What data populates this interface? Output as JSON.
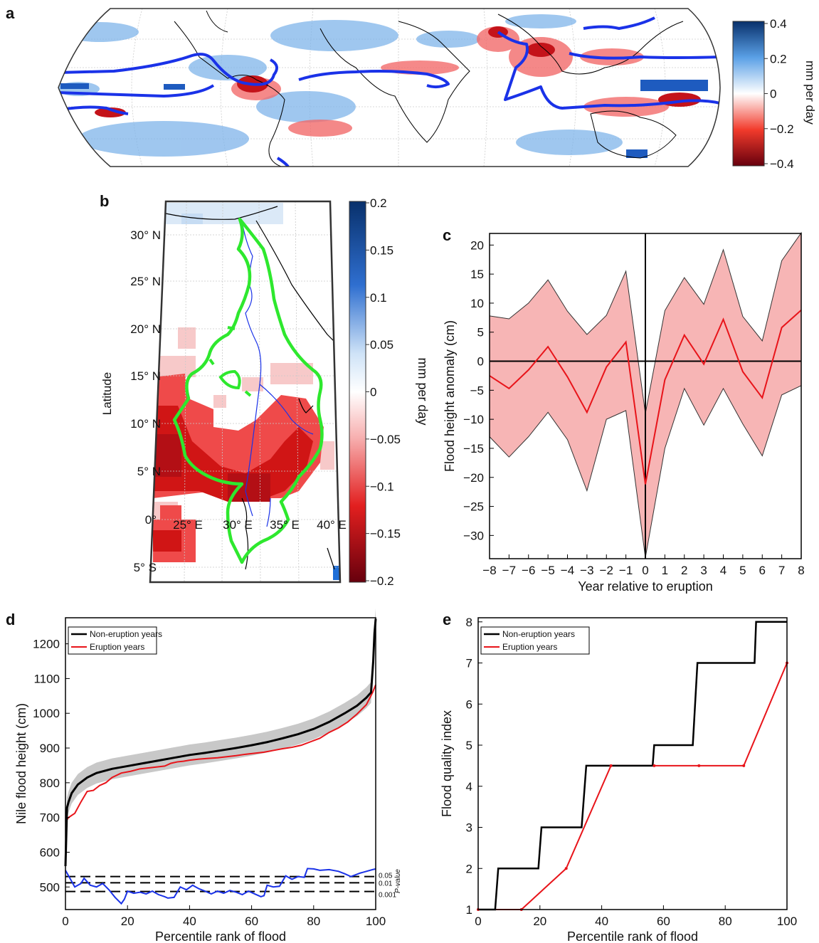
{
  "panels": {
    "a": {
      "letter": "a",
      "colorbar": {
        "ticks": [
          "0.4",
          "0.2",
          "0",
          "−0.2",
          "−0.4"
        ],
        "label": "mm per day",
        "colors": [
          "#08306b",
          "#4a90e2",
          "#ffffff",
          "#ef3b2c",
          "#67000d"
        ]
      }
    },
    "b": {
      "letter": "b",
      "ylabel": "Latitude",
      "lat_ticks": [
        "30° N",
        "25° N",
        "20° N",
        "15° N",
        "10° N",
        "5° N",
        "0°",
        "5° S"
      ],
      "lon_ticks": [
        "25° E",
        "30° E",
        "35° E",
        "40° E"
      ],
      "colorbar": {
        "ticks": [
          "0.2",
          "0.15",
          "0.1",
          "0.05",
          "0",
          "−0.05",
          "−0.1",
          "−0.15",
          "−0.2"
        ],
        "label": "mm per day"
      }
    }
  },
  "chart_data": [
    {
      "panel": "c",
      "type": "line",
      "xlabel": "Year relative to eruption",
      "ylabel": "Flood height anomaly (cm)",
      "x": [
        -8,
        -7,
        -6,
        -5,
        -4,
        -3,
        -2,
        -1,
        0,
        1,
        2,
        3,
        4,
        5,
        6,
        7,
        8
      ],
      "xticks": [
        "−8",
        "−7",
        "−6",
        "−5",
        "−4",
        "−3",
        "−2",
        "−1",
        "0",
        "1",
        "2",
        "3",
        "4",
        "5",
        "6",
        "7",
        "8"
      ],
      "yticks": [
        "20",
        "15",
        "10",
        "5",
        "0",
        "−5",
        "−10",
        "−15",
        "−20",
        "−25",
        "−30"
      ],
      "ytick_values": [
        20,
        15,
        10,
        5,
        0,
        -5,
        -10,
        -15,
        -20,
        -25,
        -30
      ],
      "xlim": [
        -8,
        8
      ],
      "ylim": [
        -34,
        22
      ],
      "series": [
        {
          "role": "mean",
          "values": [
            -2.5,
            -4.7,
            -1.5,
            2.5,
            -2.7,
            -8.8,
            -1.0,
            3.3,
            -21.2,
            -3.2,
            4.5,
            -0.5,
            7.2,
            -1.8,
            -6.3,
            5.8,
            8.8
          ],
          "color": "#e8141a"
        },
        {
          "role": "upper",
          "values": [
            7.8,
            7.3,
            10.0,
            14.0,
            8.6,
            4.6,
            7.9,
            15.5,
            -9.0,
            8.7,
            14.4,
            9.8,
            19.2,
            7.7,
            3.5,
            17.3,
            22.1
          ]
        },
        {
          "role": "lower",
          "values": [
            -13.0,
            -16.5,
            -13.0,
            -8.8,
            -13.5,
            -22.3,
            -10.0,
            -8.5,
            -33.8,
            -15.0,
            -4.7,
            -11.0,
            -4.7,
            -10.8,
            -16.3,
            -5.8,
            -4.2
          ]
        }
      ],
      "band_color": "#f7b5b5"
    },
    {
      "panel": "d",
      "type": "line",
      "xlabel": "Percentile rank of flood",
      "ylabel": "Nile flood height (cm)",
      "xticks": [
        "0",
        "20",
        "40",
        "60",
        "80",
        "100"
      ],
      "xtick_values": [
        0,
        20,
        40,
        60,
        80,
        100
      ],
      "yticks": [
        "1200",
        "1100",
        "1000",
        "900",
        "800",
        "700",
        "600",
        "500"
      ],
      "ytick_values": [
        1200,
        1100,
        1000,
        900,
        800,
        700,
        600,
        500
      ],
      "xlim": [
        0,
        100
      ],
      "ylim": [
        435,
        1275
      ],
      "legend": [
        "Non-eruption years",
        "Eruption years"
      ],
      "legend_position": "top-left",
      "series": [
        {
          "name": "Non-eruption years",
          "color": "#000000",
          "x": [
            0,
            0.5,
            1,
            2,
            4,
            7,
            10,
            15,
            20,
            25,
            30,
            35,
            40,
            45,
            50,
            55,
            60,
            65,
            70,
            75,
            80,
            85,
            90,
            94,
            97,
            98.5,
            99.2,
            99.6,
            100
          ],
          "y": [
            560,
            728,
            745,
            770,
            795,
            815,
            828,
            840,
            848,
            856,
            864,
            872,
            880,
            886,
            893,
            900,
            908,
            917,
            928,
            940,
            955,
            975,
            1000,
            1022,
            1045,
            1060,
            1150,
            1230,
            1272
          ]
        },
        {
          "name": "Eruption years",
          "color": "#e8141a",
          "x": [
            0,
            1,
            3,
            5,
            7,
            9,
            11,
            13,
            15,
            18,
            21,
            24,
            27,
            30,
            32,
            34,
            36,
            38,
            40,
            43,
            46,
            49,
            52,
            55,
            58,
            61,
            64,
            67,
            70,
            73,
            76,
            79,
            82,
            85,
            88,
            91,
            94,
            97,
            99,
            100
          ],
          "y": [
            688,
            700,
            712,
            745,
            775,
            778,
            792,
            800,
            815,
            828,
            833,
            840,
            843,
            846,
            848,
            856,
            860,
            862,
            865,
            868,
            870,
            872,
            875,
            878,
            882,
            885,
            888,
            893,
            898,
            902,
            908,
            918,
            928,
            945,
            958,
            975,
            998,
            1025,
            1060,
            1082
          ]
        },
        {
          "name": "P-value",
          "color": "#1a32e8",
          "x": [
            0,
            1,
            3,
            5,
            6,
            8,
            10,
            12,
            14,
            16,
            18,
            19,
            20,
            22,
            24,
            26,
            28,
            30,
            32,
            33,
            35,
            37,
            39,
            41,
            43,
            45,
            47,
            49,
            51,
            53,
            55,
            57,
            59,
            61,
            63,
            64,
            65,
            67,
            69,
            71,
            73,
            75,
            77,
            78,
            80,
            82,
            85,
            88,
            90,
            92,
            95,
            97,
            99,
            100
          ],
          "y": [
            548,
            532,
            500,
            510,
            525,
            505,
            500,
            510,
            492,
            470,
            452,
            465,
            488,
            482,
            485,
            480,
            488,
            478,
            472,
            468,
            470,
            500,
            492,
            505,
            495,
            488,
            480,
            488,
            482,
            490,
            485,
            478,
            488,
            480,
            472,
            475,
            505,
            500,
            502,
            532,
            522,
            530,
            528,
            553,
            552,
            548,
            550,
            545,
            538,
            530,
            540,
            545,
            550,
            552
          ]
        }
      ],
      "pvalue_lines": [
        {
          "label": "0.05",
          "value": 530
        },
        {
          "label": "0.01",
          "value": 512
        },
        {
          "label": "0.001",
          "value": 487
        }
      ],
      "pvalue_axis_label": "P-value"
    },
    {
      "panel": "e",
      "type": "line",
      "xlabel": "Percentile rank of flood",
      "ylabel": "Flood quality index",
      "xticks": [
        "0",
        "20",
        "40",
        "60",
        "80",
        "100"
      ],
      "xtick_values": [
        0,
        20,
        40,
        60,
        80,
        100
      ],
      "yticks": [
        "8",
        "7",
        "6",
        "5",
        "4",
        "3",
        "2",
        "1"
      ],
      "ytick_values": [
        8,
        7,
        6,
        5,
        4,
        3,
        2,
        1
      ],
      "xlim": [
        0,
        100
      ],
      "ylim": [
        1,
        8.1
      ],
      "legend": [
        "Non-eruption years",
        "Eruption years"
      ],
      "legend_position": "top-left",
      "series": [
        {
          "name": "Non-eruption years",
          "color": "#000000",
          "x": [
            0,
            5.5,
            6.5,
            19.5,
            20.5,
            33.5,
            35,
            56.5,
            57,
            69.5,
            71,
            89.5,
            90,
            100
          ],
          "y": [
            1,
            1,
            2,
            2,
            3,
            3,
            4.5,
            4.5,
            5,
            5,
            7,
            7,
            8,
            8
          ]
        },
        {
          "name": "Eruption years",
          "color": "#e8141a",
          "x": [
            0,
            14,
            28.5,
            43,
            57,
            71.5,
            86,
            100
          ],
          "y": [
            1,
            1,
            2,
            4.5,
            4.5,
            4.5,
            4.5,
            7
          ]
        }
      ]
    }
  ],
  "panel_letters": {
    "c": "c",
    "d": "d",
    "e": "e"
  }
}
